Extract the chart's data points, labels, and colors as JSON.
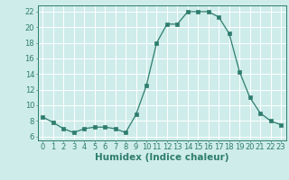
{
  "x": [
    0,
    1,
    2,
    3,
    4,
    5,
    6,
    7,
    8,
    9,
    10,
    11,
    12,
    13,
    14,
    15,
    16,
    17,
    18,
    19,
    20,
    21,
    22,
    23
  ],
  "y": [
    8.5,
    7.8,
    7.0,
    6.5,
    7.0,
    7.2,
    7.2,
    7.0,
    6.5,
    8.8,
    12.5,
    18.0,
    20.4,
    20.4,
    22.0,
    22.0,
    22.0,
    21.3,
    19.2,
    14.3,
    11.0,
    9.0,
    8.0,
    7.5
  ],
  "line_color": "#2e7d6e",
  "marker": "s",
  "markersize": 2.2,
  "bg_color": "#ceecea",
  "grid_color": "#ffffff",
  "xlabel": "Humidex (Indice chaleur)",
  "xlim": [
    -0.5,
    23.5
  ],
  "ylim": [
    5.5,
    22.8
  ],
  "yticks": [
    6,
    8,
    10,
    12,
    14,
    16,
    18,
    20,
    22
  ],
  "xticks": [
    0,
    1,
    2,
    3,
    4,
    5,
    6,
    7,
    8,
    9,
    10,
    11,
    12,
    13,
    14,
    15,
    16,
    17,
    18,
    19,
    20,
    21,
    22,
    23
  ],
  "tick_color": "#2e7d6e",
  "label_fontsize": 7.5,
  "tick_fontsize": 6.0,
  "linewidth": 0.9
}
